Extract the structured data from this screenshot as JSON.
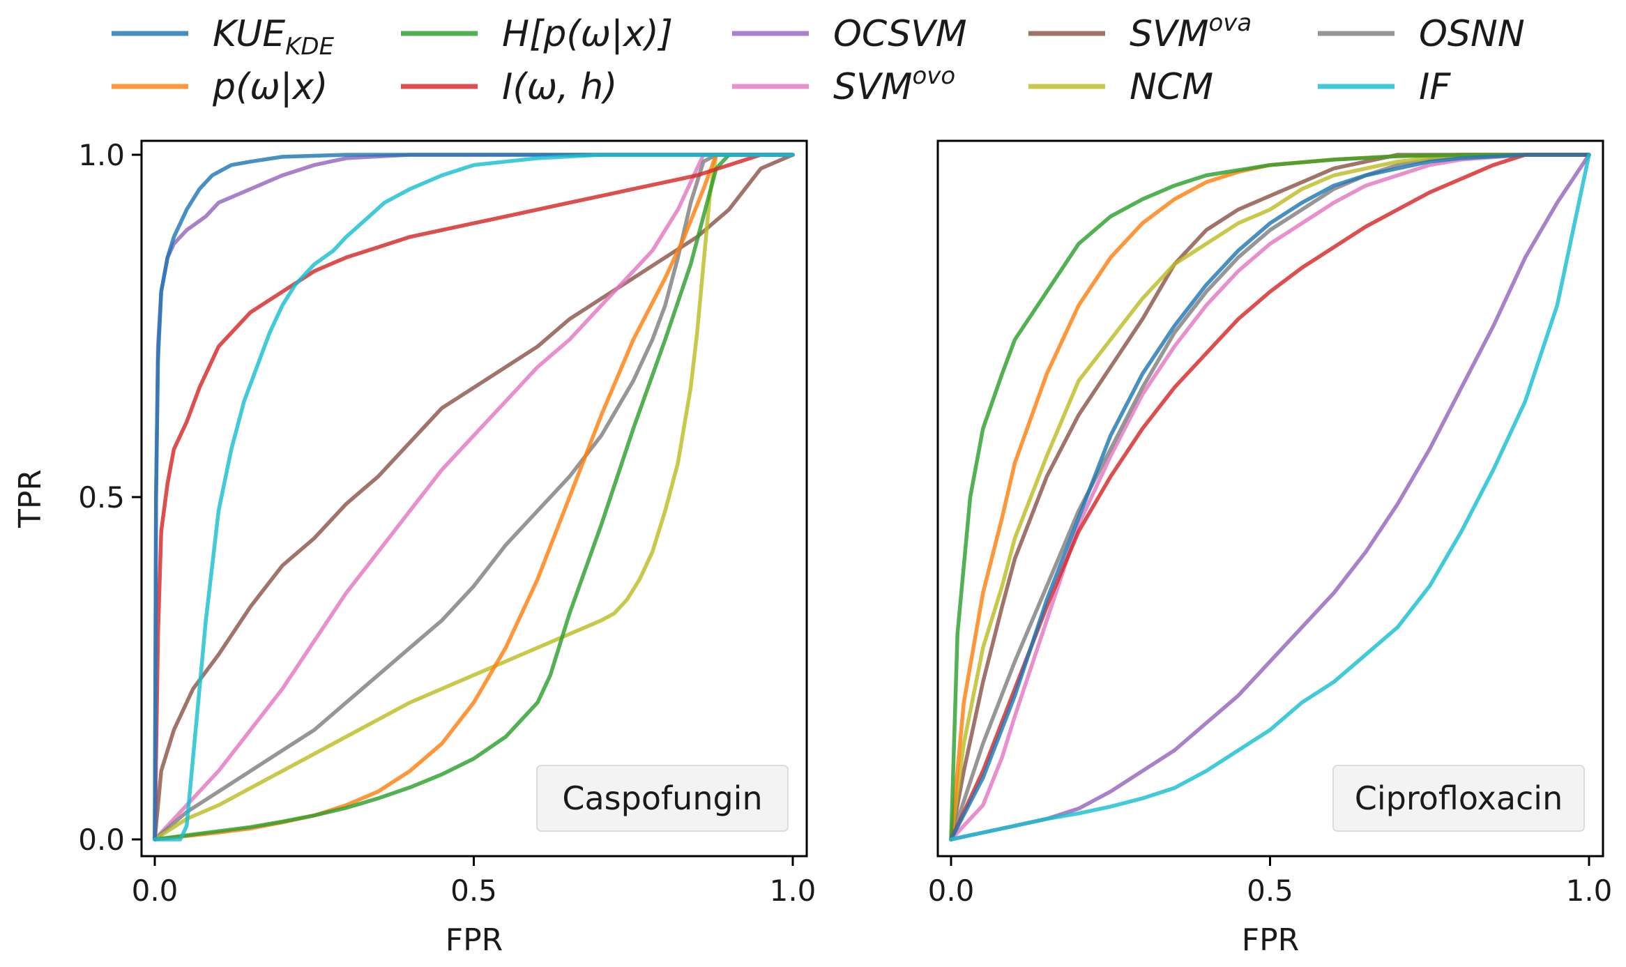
{
  "legend": [
    {
      "key": "KUE_KDE",
      "base": "KUE",
      "sub": "KDE",
      "sup": "",
      "color": "#1f77b4"
    },
    {
      "key": "p",
      "base": "p(ω|x)",
      "sub": "",
      "sup": "",
      "color": "#ff7f0e"
    },
    {
      "key": "H",
      "base": "H[p(ω|x)]",
      "sub": "",
      "sup": "",
      "color": "#2ca02c"
    },
    {
      "key": "I",
      "base": "I(ω, h)",
      "sub": "",
      "sup": "",
      "color": "#d62728"
    },
    {
      "key": "OCSVM",
      "base": "OCSVM",
      "sub": "",
      "sup": "",
      "color": "#9467bd"
    },
    {
      "key": "SVMovo",
      "base": "SVM",
      "sub": "",
      "sup": "ovo",
      "color": "#e377c2"
    },
    {
      "key": "SVMova",
      "base": "SVM",
      "sub": "",
      "sup": "ova",
      "color": "#8c564b"
    },
    {
      "key": "NCM",
      "base": "NCM",
      "sub": "",
      "sup": "",
      "color": "#bcbd22"
    },
    {
      "key": "OSNN",
      "base": "OSNN",
      "sub": "",
      "sup": "",
      "color": "#7f7f7f"
    },
    {
      "key": "IF",
      "base": "IF",
      "sub": "",
      "sup": "",
      "color": "#17becf"
    }
  ],
  "chart_data": [
    {
      "type": "line",
      "panel_label": "Caspofungin",
      "xlabel": "FPR",
      "ylabel": "TPR",
      "xlim": [
        0,
        1
      ],
      "ylim": [
        0,
        1
      ],
      "xticks": [
        "0.0",
        "0.5",
        "1.0"
      ],
      "yticks": [
        "0.0",
        "0.5",
        "1.0"
      ],
      "series": [
        {
          "name": "SVMova",
          "x": [
            0,
            0.01,
            0.03,
            0.06,
            0.1,
            0.15,
            0.2,
            0.25,
            0.3,
            0.35,
            0.4,
            0.45,
            0.5,
            0.55,
            0.6,
            0.65,
            0.7,
            0.75,
            0.8,
            0.85,
            0.9,
            0.95,
            1
          ],
          "y": [
            0,
            0.1,
            0.16,
            0.22,
            0.27,
            0.34,
            0.4,
            0.44,
            0.49,
            0.53,
            0.58,
            0.63,
            0.66,
            0.69,
            0.72,
            0.76,
            0.79,
            0.82,
            0.85,
            0.88,
            0.92,
            0.98,
            1
          ]
        },
        {
          "name": "SVMovo",
          "x": [
            0,
            0.05,
            0.1,
            0.15,
            0.2,
            0.25,
            0.3,
            0.35,
            0.4,
            0.45,
            0.5,
            0.55,
            0.6,
            0.65,
            0.7,
            0.75,
            0.78,
            0.8,
            0.82,
            0.84,
            0.86,
            0.9,
            1
          ],
          "y": [
            0,
            0.05,
            0.1,
            0.16,
            0.22,
            0.29,
            0.36,
            0.42,
            0.48,
            0.54,
            0.59,
            0.64,
            0.69,
            0.73,
            0.78,
            0.83,
            0.86,
            0.89,
            0.92,
            0.96,
            1,
            1,
            1
          ]
        },
        {
          "name": "OSNN",
          "x": [
            0,
            0.05,
            0.1,
            0.15,
            0.2,
            0.25,
            0.3,
            0.35,
            0.4,
            0.45,
            0.5,
            0.55,
            0.6,
            0.65,
            0.7,
            0.75,
            0.78,
            0.8,
            0.82,
            0.84,
            0.86,
            0.88,
            0.9,
            1
          ],
          "y": [
            0,
            0.04,
            0.07,
            0.1,
            0.13,
            0.16,
            0.2,
            0.24,
            0.28,
            0.32,
            0.37,
            0.43,
            0.48,
            0.53,
            0.59,
            0.67,
            0.73,
            0.78,
            0.85,
            0.93,
            0.99,
            1,
            1,
            1
          ]
        },
        {
          "name": "NCM",
          "x": [
            0,
            0.05,
            0.1,
            0.2,
            0.3,
            0.4,
            0.5,
            0.6,
            0.65,
            0.7,
            0.72,
            0.74,
            0.76,
            0.78,
            0.8,
            0.82,
            0.84,
            0.85,
            0.86,
            0.87,
            0.88,
            0.9,
            1
          ],
          "y": [
            0,
            0.03,
            0.05,
            0.1,
            0.15,
            0.2,
            0.24,
            0.28,
            0.3,
            0.32,
            0.33,
            0.35,
            0.38,
            0.42,
            0.48,
            0.55,
            0.66,
            0.74,
            0.84,
            0.94,
            1,
            1,
            1
          ]
        },
        {
          "name": "p(ω|x)",
          "x": [
            0,
            0.05,
            0.1,
            0.15,
            0.2,
            0.25,
            0.3,
            0.35,
            0.4,
            0.45,
            0.5,
            0.55,
            0.6,
            0.65,
            0.7,
            0.75,
            0.8,
            0.83,
            0.86,
            0.88,
            0.9,
            1
          ],
          "y": [
            0,
            0.005,
            0.01,
            0.016,
            0.025,
            0.035,
            0.05,
            0.07,
            0.1,
            0.14,
            0.2,
            0.28,
            0.38,
            0.5,
            0.62,
            0.73,
            0.82,
            0.88,
            0.95,
            1,
            1,
            1
          ]
        },
        {
          "name": "H[p(ω|x)]",
          "x": [
            0,
            0.05,
            0.1,
            0.15,
            0.2,
            0.25,
            0.3,
            0.35,
            0.4,
            0.45,
            0.5,
            0.55,
            0.6,
            0.62,
            0.65,
            0.7,
            0.75,
            0.8,
            0.84,
            0.88,
            0.9,
            1
          ],
          "y": [
            0,
            0.006,
            0.012,
            0.018,
            0.026,
            0.035,
            0.046,
            0.06,
            0.076,
            0.095,
            0.118,
            0.15,
            0.2,
            0.24,
            0.33,
            0.46,
            0.6,
            0.73,
            0.84,
            0.98,
            1,
            1
          ]
        },
        {
          "name": "I(ω, h)",
          "x": [
            0,
            0.005,
            0.01,
            0.02,
            0.03,
            0.05,
            0.07,
            0.1,
            0.15,
            0.2,
            0.25,
            0.3,
            0.35,
            0.4,
            0.45,
            0.5,
            0.55,
            0.6,
            0.65,
            0.7,
            0.75,
            0.8,
            0.85,
            0.9,
            0.95,
            1
          ],
          "y": [
            0,
            0.3,
            0.45,
            0.52,
            0.57,
            0.61,
            0.66,
            0.72,
            0.77,
            0.8,
            0.83,
            0.85,
            0.865,
            0.88,
            0.89,
            0.9,
            0.91,
            0.92,
            0.93,
            0.94,
            0.95,
            0.96,
            0.97,
            0.985,
            1,
            1
          ]
        },
        {
          "name": "OCSVM",
          "x": [
            0,
            0.002,
            0.005,
            0.01,
            0.02,
            0.03,
            0.05,
            0.08,
            0.1,
            0.15,
            0.2,
            0.25,
            0.3,
            0.4,
            0.5,
            1
          ],
          "y": [
            0,
            0.5,
            0.72,
            0.8,
            0.85,
            0.87,
            0.89,
            0.91,
            0.93,
            0.95,
            0.97,
            0.985,
            0.995,
            1,
            1,
            1
          ]
        },
        {
          "name": "KUE_KDE",
          "x": [
            0,
            0.002,
            0.005,
            0.01,
            0.02,
            0.03,
            0.05,
            0.07,
            0.09,
            0.12,
            0.15,
            0.2,
            0.3,
            0.4,
            1
          ],
          "y": [
            0,
            0.5,
            0.7,
            0.8,
            0.85,
            0.88,
            0.92,
            0.95,
            0.97,
            0.985,
            0.99,
            0.997,
            1,
            1,
            1
          ]
        },
        {
          "name": "IF",
          "x": [
            0,
            0.04,
            0.05,
            0.06,
            0.07,
            0.08,
            0.09,
            0.1,
            0.12,
            0.14,
            0.16,
            0.18,
            0.2,
            0.22,
            0.25,
            0.28,
            0.3,
            0.33,
            0.36,
            0.4,
            0.45,
            0.5,
            0.55,
            0.6,
            0.7,
            0.8,
            1
          ],
          "y": [
            0,
            0,
            0.02,
            0.12,
            0.22,
            0.32,
            0.4,
            0.48,
            0.57,
            0.64,
            0.69,
            0.74,
            0.78,
            0.81,
            0.84,
            0.86,
            0.88,
            0.905,
            0.93,
            0.95,
            0.97,
            0.985,
            0.99,
            0.995,
            1,
            1,
            1
          ]
        }
      ]
    },
    {
      "type": "line",
      "panel_label": "Ciprofloxacin",
      "xlabel": "FPR",
      "ylabel": "",
      "xlim": [
        0,
        1
      ],
      "ylim": [
        0,
        1
      ],
      "xticks": [
        "0.0",
        "0.5",
        "1.0"
      ],
      "yticks": [],
      "series": [
        {
          "name": "H[p(ω|x)]",
          "x": [
            0,
            0.01,
            0.03,
            0.05,
            0.08,
            0.1,
            0.15,
            0.2,
            0.25,
            0.3,
            0.35,
            0.4,
            0.5,
            0.6,
            0.7,
            0.8,
            1
          ],
          "y": [
            0,
            0.3,
            0.5,
            0.6,
            0.68,
            0.73,
            0.8,
            0.87,
            0.91,
            0.935,
            0.955,
            0.97,
            0.985,
            0.993,
            0.998,
            1,
            1
          ]
        },
        {
          "name": "p(ω|x)",
          "x": [
            0,
            0.02,
            0.05,
            0.08,
            0.1,
            0.15,
            0.2,
            0.25,
            0.3,
            0.35,
            0.4,
            0.45,
            0.5,
            0.6,
            0.7,
            0.8,
            1
          ],
          "y": [
            0,
            0.2,
            0.36,
            0.47,
            0.55,
            0.68,
            0.78,
            0.85,
            0.9,
            0.935,
            0.96,
            0.975,
            0.985,
            0.993,
            0.998,
            1,
            1
          ]
        },
        {
          "name": "NCM",
          "x": [
            0,
            0.02,
            0.05,
            0.08,
            0.1,
            0.15,
            0.2,
            0.25,
            0.3,
            0.35,
            0.4,
            0.45,
            0.5,
            0.55,
            0.6,
            0.7,
            0.8,
            1
          ],
          "y": [
            0,
            0.14,
            0.28,
            0.37,
            0.44,
            0.56,
            0.67,
            0.73,
            0.79,
            0.84,
            0.87,
            0.9,
            0.92,
            0.95,
            0.97,
            0.99,
            1,
            1
          ]
        },
        {
          "name": "SVMova",
          "x": [
            0,
            0.02,
            0.05,
            0.08,
            0.1,
            0.15,
            0.2,
            0.25,
            0.3,
            0.35,
            0.4,
            0.45,
            0.5,
            0.55,
            0.6,
            0.65,
            0.7,
            0.8,
            1
          ],
          "y": [
            0,
            0.1,
            0.23,
            0.34,
            0.41,
            0.53,
            0.62,
            0.69,
            0.76,
            0.84,
            0.89,
            0.92,
            0.94,
            0.96,
            0.98,
            0.99,
            1,
            1,
            1
          ]
        },
        {
          "name": "OSNN",
          "x": [
            0,
            0.05,
            0.1,
            0.15,
            0.2,
            0.25,
            0.3,
            0.35,
            0.4,
            0.45,
            0.5,
            0.55,
            0.6,
            0.65,
            0.7,
            0.75,
            0.8,
            0.9,
            1
          ],
          "y": [
            0,
            0.14,
            0.26,
            0.37,
            0.48,
            0.57,
            0.66,
            0.74,
            0.8,
            0.85,
            0.89,
            0.92,
            0.95,
            0.97,
            0.985,
            0.993,
            0.998,
            1,
            1
          ]
        },
        {
          "name": "KUE_KDE",
          "x": [
            0,
            0.05,
            0.1,
            0.15,
            0.2,
            0.25,
            0.3,
            0.35,
            0.4,
            0.45,
            0.5,
            0.55,
            0.6,
            0.65,
            0.7,
            0.75,
            0.8,
            0.9,
            1
          ],
          "y": [
            0,
            0.09,
            0.21,
            0.35,
            0.47,
            0.59,
            0.68,
            0.75,
            0.81,
            0.86,
            0.9,
            0.93,
            0.955,
            0.97,
            0.98,
            0.99,
            0.995,
            1,
            1
          ]
        },
        {
          "name": "SVMovo",
          "x": [
            0,
            0.05,
            0.08,
            0.1,
            0.15,
            0.2,
            0.25,
            0.3,
            0.35,
            0.4,
            0.45,
            0.5,
            0.55,
            0.6,
            0.65,
            0.7,
            0.75,
            0.8,
            0.9,
            1
          ],
          "y": [
            0,
            0.05,
            0.12,
            0.18,
            0.32,
            0.46,
            0.56,
            0.65,
            0.72,
            0.78,
            0.83,
            0.87,
            0.9,
            0.93,
            0.955,
            0.97,
            0.985,
            0.993,
            1,
            1
          ]
        },
        {
          "name": "I(ω, h)",
          "x": [
            0,
            0.05,
            0.1,
            0.15,
            0.2,
            0.25,
            0.3,
            0.35,
            0.4,
            0.45,
            0.5,
            0.55,
            0.6,
            0.65,
            0.7,
            0.75,
            0.8,
            0.85,
            0.9,
            1
          ],
          "y": [
            0,
            0.1,
            0.22,
            0.34,
            0.45,
            0.53,
            0.6,
            0.66,
            0.71,
            0.76,
            0.8,
            0.835,
            0.865,
            0.895,
            0.92,
            0.945,
            0.965,
            0.985,
            1,
            1
          ]
        },
        {
          "name": "OCSVM",
          "x": [
            0,
            0.05,
            0.1,
            0.15,
            0.2,
            0.25,
            0.3,
            0.35,
            0.4,
            0.45,
            0.5,
            0.55,
            0.6,
            0.65,
            0.7,
            0.75,
            0.8,
            0.85,
            0.9,
            0.95,
            1
          ],
          "y": [
            0,
            0.01,
            0.02,
            0.03,
            0.045,
            0.07,
            0.1,
            0.13,
            0.17,
            0.21,
            0.26,
            0.31,
            0.36,
            0.42,
            0.49,
            0.57,
            0.66,
            0.75,
            0.85,
            0.93,
            1
          ]
        },
        {
          "name": "IF",
          "x": [
            0,
            0.05,
            0.1,
            0.15,
            0.2,
            0.25,
            0.3,
            0.35,
            0.4,
            0.45,
            0.5,
            0.55,
            0.6,
            0.65,
            0.7,
            0.75,
            0.8,
            0.85,
            0.9,
            0.95,
            1
          ],
          "y": [
            0,
            0.01,
            0.02,
            0.03,
            0.038,
            0.048,
            0.06,
            0.075,
            0.1,
            0.13,
            0.16,
            0.2,
            0.23,
            0.27,
            0.31,
            0.37,
            0.45,
            0.54,
            0.64,
            0.78,
            1
          ]
        }
      ]
    }
  ]
}
